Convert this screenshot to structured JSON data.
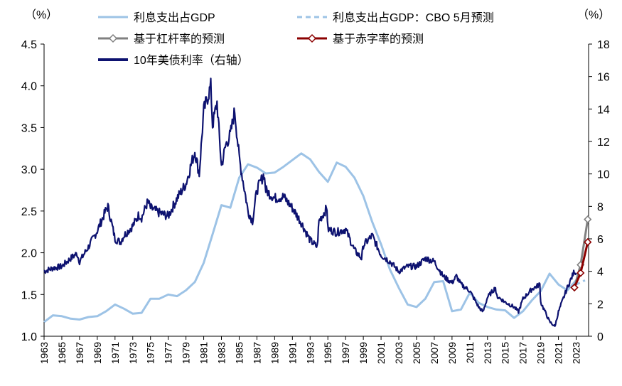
{
  "chart_data": {
    "type": "line",
    "left_axis": {
      "unit": "（%）",
      "ylim": [
        1.0,
        4.5
      ],
      "ticks": [
        1.0,
        1.5,
        2.0,
        2.5,
        3.0,
        3.5,
        4.0,
        4.5
      ]
    },
    "right_axis": {
      "unit": "（%）",
      "ylim": [
        0,
        18
      ],
      "ticks": [
        0,
        2,
        4,
        6,
        8,
        10,
        12,
        14,
        16,
        18
      ]
    },
    "x_ticks": [
      "1963",
      "1965",
      "1967",
      "1969",
      "1971",
      "1973",
      "1975",
      "1977",
      "1979",
      "1981",
      "1983",
      "1985",
      "1987",
      "1989",
      "1991",
      "1993",
      "1995",
      "1997",
      "1999",
      "2001",
      "2003",
      "2005",
      "2007",
      "2009",
      "2011",
      "2013",
      "2015",
      "2017",
      "2019",
      "2021",
      "2023"
    ],
    "xlim": [
      1963,
      2024.4
    ],
    "colors": {
      "interest": "#9dc3e6",
      "forecast": "#9dc3e6",
      "leverage": "#808080",
      "deficit": "#8b0000",
      "yield": "#0d1270"
    },
    "series": [
      {
        "name": "利息支出占GDP",
        "axis": "left",
        "style": "solid",
        "x": [
          1963,
          1964,
          1965,
          1966,
          1967,
          1968,
          1969,
          1970,
          1971,
          1972,
          1973,
          1974,
          1975,
          1976,
          1977,
          1978,
          1979,
          1980,
          1981,
          1982,
          1983,
          1984,
          1985,
          1986,
          1987,
          1988,
          1989,
          1990,
          1991,
          1992,
          1993,
          1994,
          1995,
          1996,
          1997,
          1998,
          1999,
          2000,
          2001,
          2002,
          2003,
          2004,
          2005,
          2006,
          2007,
          2008,
          2009,
          2010,
          2011,
          2012,
          2013,
          2014,
          2015,
          2016,
          2017,
          2018,
          2019,
          2020,
          2021,
          2022,
          2023
        ],
        "values": [
          1.17,
          1.25,
          1.24,
          1.21,
          1.2,
          1.23,
          1.24,
          1.3,
          1.38,
          1.33,
          1.27,
          1.28,
          1.45,
          1.45,
          1.5,
          1.48,
          1.55,
          1.65,
          1.88,
          2.22,
          2.57,
          2.54,
          2.9,
          3.06,
          3.02,
          2.95,
          2.96,
          3.03,
          3.11,
          3.19,
          3.12,
          2.97,
          2.85,
          3.08,
          3.03,
          2.9,
          2.68,
          2.37,
          2.1,
          1.8,
          1.58,
          1.38,
          1.35,
          1.45,
          1.65,
          1.66,
          1.3,
          1.32,
          1.52,
          1.4,
          1.35,
          1.32,
          1.31,
          1.22,
          1.3,
          1.43,
          1.54,
          1.75,
          1.62,
          1.55,
          1.67
        ]
      },
      {
        "name": "利息支出占GDP：CBO 5月预测",
        "axis": "left",
        "style": "dashed",
        "x": [
          2022,
          2023,
          2024
        ],
        "values": [
          1.58,
          1.62,
          1.67
        ]
      },
      {
        "name": "基于杠杆率的预测",
        "axis": "right",
        "style": "marker",
        "x": [
          2022.8,
          2023.5,
          2024.3
        ],
        "values": [
          3.0,
          4.4,
          7.2
        ]
      },
      {
        "name": "基于赤字率的预测",
        "axis": "right",
        "style": "marker",
        "x": [
          2022.8,
          2023.5,
          2024.3
        ],
        "values": [
          3.0,
          3.9,
          5.8
        ]
      },
      {
        "name": "10年美债利率（右轴）",
        "axis": "right",
        "style": "solid-thick",
        "x": [
          1963,
          1964,
          1965,
          1966,
          1966.7,
          1967,
          1968,
          1969,
          1970,
          1970.2,
          1971,
          1971.6,
          1972,
          1973,
          1973.7,
          1974,
          1974.7,
          1975,
          1976,
          1977,
          1978,
          1979,
          1980,
          1980.5,
          1981,
          1981.8,
          1982,
          1982.5,
          1983,
          1983.5,
          1984,
          1984.5,
          1985,
          1986,
          1986.5,
          1987,
          1987.8,
          1988,
          1989,
          1990,
          1991,
          1992,
          1993,
          1993.8,
          1994,
          1994.9,
          1995,
          1996,
          1997,
          1998,
          1998.8,
          1999,
          2000,
          2001,
          2002,
          2003,
          2004,
          2005,
          2006,
          2007,
          2008,
          2009,
          2009.5,
          2010,
          2011,
          2012,
          2012.5,
          2013,
          2013.9,
          2014,
          2015,
          2016,
          2016.5,
          2017,
          2018,
          2018.9,
          2019,
          2020,
          2020.6,
          2021,
          2022,
          2022.8,
          2023
        ],
        "values": [
          4.0,
          4.2,
          4.3,
          4.8,
          5.1,
          4.6,
          5.5,
          6.5,
          7.8,
          8.0,
          6.0,
          5.8,
          6.2,
          6.8,
          7.5,
          7.3,
          8.3,
          7.9,
          7.6,
          7.4,
          8.5,
          9.4,
          11.4,
          10.0,
          13.9,
          15.4,
          13.0,
          14.4,
          10.5,
          11.8,
          12.4,
          13.9,
          11.0,
          7.7,
          7.1,
          9.0,
          10.0,
          9.0,
          8.5,
          8.6,
          7.9,
          7.0,
          5.9,
          5.5,
          7.1,
          7.9,
          6.6,
          6.4,
          6.6,
          5.3,
          4.8,
          5.6,
          6.2,
          5.0,
          4.6,
          4.0,
          4.3,
          4.3,
          4.8,
          4.6,
          3.7,
          3.3,
          3.7,
          3.2,
          2.8,
          1.8,
          1.5,
          2.4,
          3.0,
          2.5,
          2.1,
          1.8,
          1.5,
          2.3,
          2.9,
          3.2,
          2.1,
          0.9,
          0.6,
          1.5,
          3.0,
          4.0,
          3.9
        ]
      }
    ]
  }
}
